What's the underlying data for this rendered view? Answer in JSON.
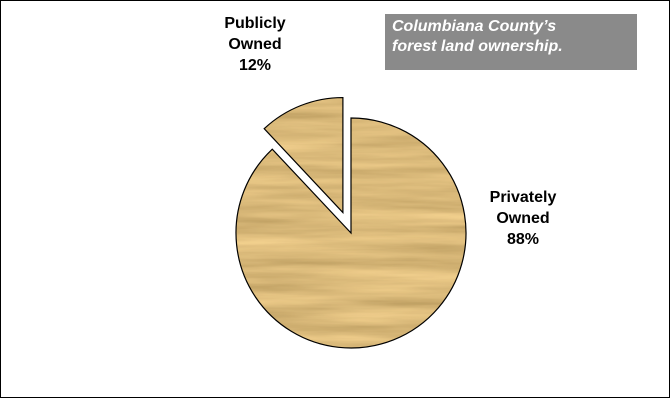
{
  "chart_data": {
    "type": "pie",
    "title": "Columbiana County’s forest land ownership.",
    "title_lines": [
      "Columbiana County’s",
      "forest land ownership."
    ],
    "slices": [
      {
        "label_lines": [
          "Publicly",
          "Owned"
        ],
        "label": "Publicly Owned",
        "value": 12,
        "value_label": "12%",
        "exploded": true
      },
      {
        "label_lines": [
          "Privately",
          "Owned"
        ],
        "label": "Privately Owned",
        "value": 88,
        "value_label": "88%",
        "exploded": false
      }
    ],
    "fill_texture": "oak-wood-grain",
    "legend": "none",
    "colors": {
      "wood_base": "#c9a25c",
      "wood_dark": "#8c6428",
      "wood_light": "#e8cc8a",
      "title_box_bg": "#8a8a8a",
      "title_text": "#ffffff",
      "outline": "#000000"
    }
  }
}
